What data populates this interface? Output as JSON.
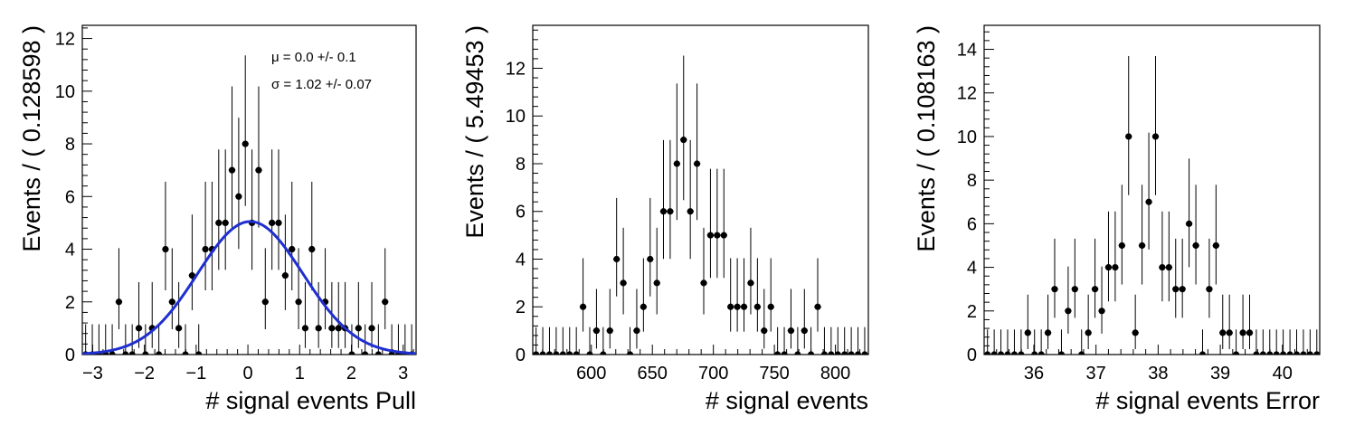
{
  "chart_data": [
    {
      "type": "scatter",
      "xlabel": "# signal events Pull",
      "ylabel": "Events / ( 0.128598 )",
      "xlim": [
        -3.2,
        3.25
      ],
      "ylim": [
        0,
        12.5
      ],
      "x_ticks": [
        -3,
        -2,
        -1,
        0,
        1,
        2,
        3
      ],
      "x_tick_labels": [
        "−3",
        "−2",
        "−1",
        "0",
        "1",
        "2",
        "3"
      ],
      "y_ticks": [
        0,
        2,
        4,
        6,
        8,
        10,
        12
      ],
      "y_tick_labels": [
        "0",
        "2",
        "4",
        "6",
        "8",
        "10",
        "12"
      ],
      "grid": false,
      "bin_width": 0.128598,
      "x": [
        -3.136,
        -3.007,
        -2.879,
        -2.75,
        -2.622,
        -2.493,
        -2.364,
        -2.236,
        -2.107,
        -1.979,
        -1.85,
        -1.721,
        -1.593,
        -1.464,
        -1.336,
        -1.207,
        -1.078,
        -0.95,
        -0.821,
        -0.693,
        -0.564,
        -0.435,
        -0.307,
        -0.178,
        -0.05,
        0.079,
        0.208,
        0.336,
        0.465,
        0.593,
        0.722,
        0.851,
        0.979,
        1.108,
        1.236,
        1.365,
        1.494,
        1.622,
        1.751,
        1.879,
        2.008,
        2.137,
        2.265,
        2.394,
        2.522,
        2.651,
        2.78,
        2.908,
        3.037,
        3.165
      ],
      "y": [
        0,
        0,
        0,
        0,
        0,
        2,
        0,
        0,
        1,
        0,
        1,
        0,
        4,
        2,
        1,
        0,
        3,
        0,
        4,
        4,
        5,
        5,
        7,
        6,
        8,
        5,
        7,
        2,
        5,
        5,
        3,
        4,
        2,
        1,
        4,
        1,
        2,
        1,
        1,
        1,
        0,
        1,
        0,
        1,
        0,
        2,
        0,
        0,
        0,
        0
      ],
      "fit": {
        "type": "gaussian",
        "mu": 0.0452,
        "sigma": 1.02,
        "amplitude": 5.05,
        "color": "#1f2fd0",
        "labels": [
          "μ =  0.0 +/- 0.1",
          "σ =  1.02 +/- 0.07"
        ]
      },
      "marker_color": "#000000"
    },
    {
      "type": "scatter",
      "xlabel": "# signal events",
      "ylabel": "Events / ( 5.49453 )",
      "xlim": [
        552,
        827
      ],
      "ylim": [
        0,
        13.8
      ],
      "x_ticks": [
        600,
        650,
        700,
        750,
        800
      ],
      "x_tick_labels": [
        "600",
        "650",
        "700",
        "750",
        "800"
      ],
      "y_ticks": [
        0,
        2,
        4,
        6,
        8,
        10,
        12
      ],
      "y_tick_labels": [
        "0",
        "2",
        "4",
        "6",
        "8",
        "10",
        "12"
      ],
      "grid": false,
      "bin_width": 5.49453,
      "x": [
        554.7,
        560.2,
        565.7,
        571.2,
        576.7,
        582.2,
        587.7,
        593.2,
        598.7,
        604.2,
        609.7,
        615.2,
        620.7,
        626.2,
        631.7,
        637.2,
        642.7,
        648.2,
        653.7,
        659.1,
        664.6,
        670.1,
        675.6,
        681.1,
        686.6,
        692.1,
        697.6,
        703.1,
        708.6,
        714.1,
        719.6,
        725.1,
        730.6,
        736.1,
        741.6,
        747.1,
        752.6,
        758.1,
        763.6,
        769.1,
        774.6,
        780.0,
        785.5,
        791.0,
        796.5,
        802.0,
        807.5,
        813.0,
        818.5,
        824.0
      ],
      "y": [
        0,
        0,
        0,
        0,
        0,
        0,
        0,
        2,
        0,
        1,
        0,
        1,
        4,
        3,
        0,
        1,
        2,
        4,
        3,
        6,
        6,
        8,
        9,
        6,
        8,
        3,
        5,
        5,
        5,
        2,
        2,
        2,
        3,
        2,
        1,
        2,
        0,
        0,
        1,
        0,
        1,
        0,
        2,
        0,
        0,
        0,
        0,
        0,
        0,
        0
      ],
      "marker_color": "#000000"
    },
    {
      "type": "scatter",
      "xlabel": "# signal events Error",
      "ylabel": "Events / ( 0.108163 )",
      "xlim": [
        35.2,
        40.6
      ],
      "ylim": [
        0,
        15.1
      ],
      "x_ticks": [
        36,
        37,
        38,
        39,
        40
      ],
      "x_tick_labels": [
        "36",
        "37",
        "38",
        "39",
        "40"
      ],
      "y_ticks": [
        0,
        2,
        4,
        6,
        8,
        10,
        12,
        14
      ],
      "y_tick_labels": [
        "0",
        "2",
        "4",
        "6",
        "8",
        "10",
        "12",
        "14"
      ],
      "grid": false,
      "bin_width": 0.108163,
      "x": [
        35.254,
        35.362,
        35.47,
        35.578,
        35.687,
        35.795,
        35.903,
        36.011,
        36.119,
        36.227,
        36.335,
        36.444,
        36.552,
        36.66,
        36.768,
        36.876,
        36.984,
        37.093,
        37.201,
        37.309,
        37.417,
        37.525,
        37.633,
        37.741,
        37.85,
        37.958,
        38.066,
        38.174,
        38.282,
        38.39,
        38.498,
        38.607,
        38.715,
        38.823,
        38.931,
        39.039,
        39.147,
        39.255,
        39.364,
        39.472,
        39.58,
        39.688,
        39.796,
        39.904,
        40.012,
        40.121,
        40.229,
        40.337,
        40.445,
        40.553
      ],
      "y": [
        0,
        0,
        0,
        0,
        0,
        0,
        1,
        0,
        0,
        1,
        3,
        0,
        2,
        3,
        0,
        1,
        3,
        2,
        4,
        4,
        5,
        10,
        1,
        5,
        7,
        10,
        4,
        4,
        3,
        3,
        6,
        5,
        0,
        3,
        5,
        1,
        1,
        0,
        1,
        1,
        0,
        0,
        0,
        0,
        0,
        0,
        0,
        0,
        0,
        0
      ],
      "marker_color": "#000000"
    }
  ]
}
